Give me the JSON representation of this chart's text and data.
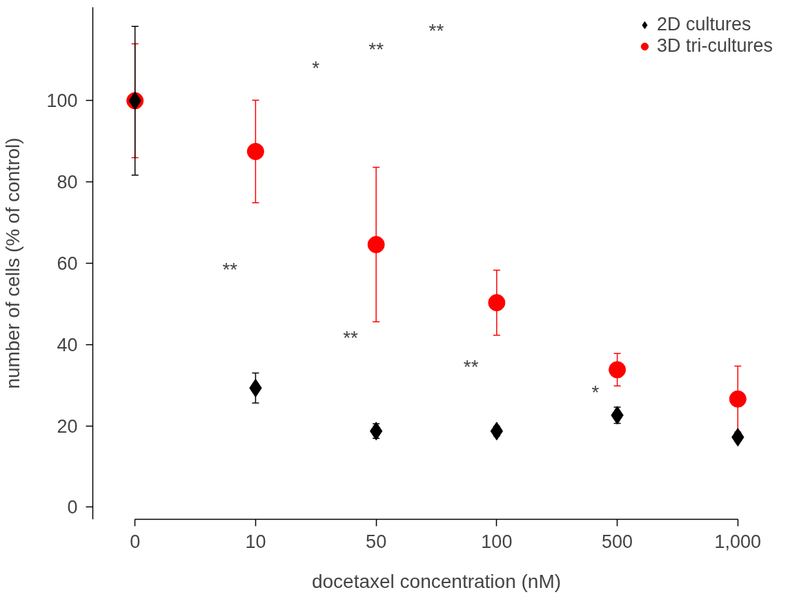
{
  "chart_data": {
    "type": "scatter",
    "xlabel": "docetaxel concentration (nM)",
    "ylabel": "number of cells (% of control)",
    "categories": [
      "0",
      "10",
      "50",
      "100",
      "500",
      "1,000"
    ],
    "ylim": [
      -3,
      123
    ],
    "yticks": [
      0,
      20,
      40,
      60,
      80,
      100
    ],
    "grid": false,
    "legend": "top right",
    "series": [
      {
        "name": "3D tri-cultures",
        "color": "#ff0000",
        "marker": "circle",
        "values": [
          100,
          87.5,
          64.6,
          50.3,
          33.8,
          26.6
        ],
        "errors": [
          14,
          12.6,
          19,
          8,
          4,
          8.1
        ]
      },
      {
        "name": "2D cultures",
        "color": "#000000",
        "marker": "diamond",
        "values": [
          100,
          29.3,
          18.7,
          18.7,
          22.6,
          17.2
        ],
        "errors": [
          18.3,
          3.7,
          1.8,
          1.2,
          2,
          1
        ]
      }
    ],
    "annotations": [
      "**",
      "**",
      "*",
      "**",
      "**",
      "**",
      "*"
    ]
  }
}
